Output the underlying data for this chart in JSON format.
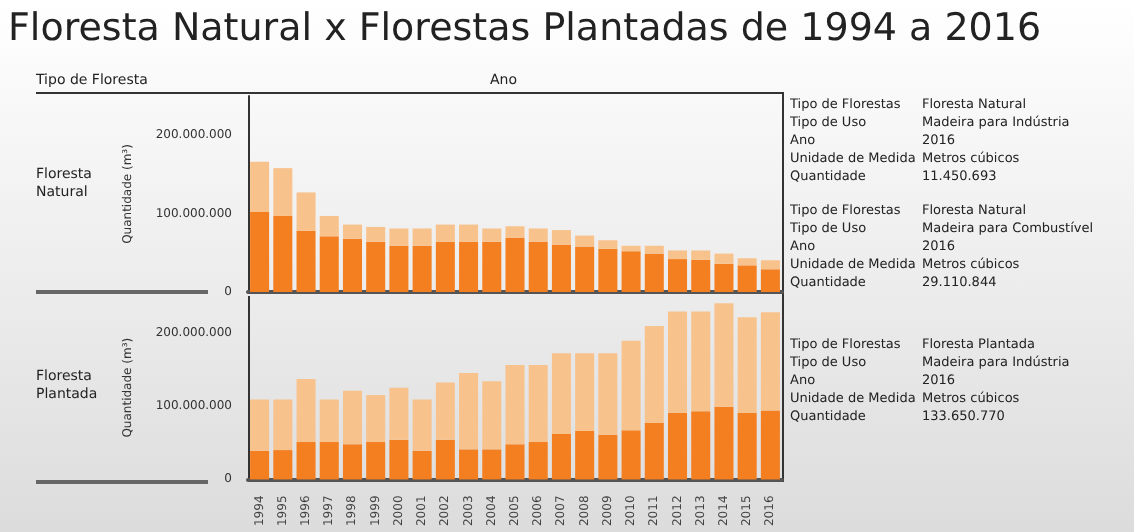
{
  "chart_data": [
    {
      "type": "bar",
      "title": "Floresta Natural x Florestas Plantadas de 1994 a 2016",
      "subtitle": "Floresta\nNatural",
      "xlabel": "Ano",
      "ylabel": "Quantidade (m³)",
      "stacked": true,
      "tick_labels": "y",
      "annotations": [
        "Tipo de Floresta",
        "Tipo de Florestas\tFloresta Natural\nTipo de Uso\tMadeira para Indústria\nAno\t2016\nUnidade de Medida\tMetros cúbicos\nQuantidade\t11.450.693",
        "Tipo de Florestas\tFloresta Natural\nTipo de Uso\tMadeira para Combustível\nAno\t2016\nUnidade de Medida\tMetros cúbicos\nQuantidade\t29.110.844"
      ],
      "categories": [
        "1994",
        "1995",
        "1996",
        "1997",
        "1998",
        "1999",
        "2000",
        "2001",
        "2002",
        "2003",
        "2004",
        "2005",
        "2006",
        "2007",
        "2008",
        "2009",
        "2010",
        "2011",
        "2012",
        "2013",
        "2014",
        "2015",
        "2016"
      ],
      "ylim": [
        0,
        250000000
      ],
      "yticks": [
        {
          "value": 0,
          "label": "0"
        },
        {
          "value": 100000000,
          "label": "100.000.000"
        },
        {
          "value": 200000000,
          "label": "200.000.000"
        }
      ],
      "series": [
        {
          "color": "#f47f20",
          "values": [
            102000000,
            97000000,
            78000000,
            71000000,
            68000000,
            64000000,
            59000000,
            59000000,
            64000000,
            64000000,
            64000000,
            69000000,
            64000000,
            60000000,
            58000000,
            55000000,
            52000000,
            49000000,
            42000000,
            41000000,
            36000000,
            34000000,
            29000000
          ]
        },
        {
          "color": "#f8c28d",
          "values": [
            64000000,
            61000000,
            49000000,
            26000000,
            18000000,
            19000000,
            22000000,
            22000000,
            22000000,
            22000000,
            17000000,
            15000000,
            17000000,
            19000000,
            14000000,
            11000000,
            7000000,
            10000000,
            11000000,
            12000000,
            13000000,
            9000000,
            11500000
          ]
        }
      ]
    },
    {
      "type": "bar",
      "subtitle": "Floresta\nPlantada",
      "ylabel": "Quantidade (m³)",
      "stacked": true,
      "annotations": [
        "Tipo de Florestas\tFloresta Plantada\nTipo de Uso\tMadeira para Indústria\nAno\t2016\nUnidade de Medida\tMetros cúbicos\nQuantidade\t133.650.770"
      ],
      "categories": [
        "1994",
        "1995",
        "1996",
        "1997",
        "1998",
        "1999",
        "2000",
        "2001",
        "2002",
        "2003",
        "2004",
        "2005",
        "2006",
        "2007",
        "2008",
        "2009",
        "2010",
        "2011",
        "2012",
        "2013",
        "2014",
        "2015",
        "2016"
      ],
      "ylim": [
        0,
        250000000
      ],
      "yticks": [
        {
          "value": 0,
          "label": "0"
        },
        {
          "value": 100000000,
          "label": "100.000.000"
        },
        {
          "value": 200000000,
          "label": "200.000.000"
        }
      ],
      "series": [
        {
          "color": "#f47f20",
          "values": [
            39000000,
            40000000,
            51000000,
            51000000,
            48000000,
            51000000,
            54000000,
            39000000,
            54000000,
            41000000,
            41000000,
            48000000,
            51000000,
            62000000,
            66000000,
            61000000,
            67000000,
            77000000,
            91000000,
            93000000,
            99000000,
            91000000,
            94000000
          ]
        },
        {
          "color": "#f8c28d",
          "values": [
            70000000,
            69000000,
            86000000,
            58000000,
            73000000,
            64000000,
            71000000,
            70000000,
            78000000,
            104000000,
            93000000,
            108000000,
            105000000,
            110000000,
            106000000,
            111000000,
            122000000,
            132000000,
            138000000,
            136000000,
            141000000,
            130000000,
            134000000
          ]
        }
      ]
    }
  ]
}
